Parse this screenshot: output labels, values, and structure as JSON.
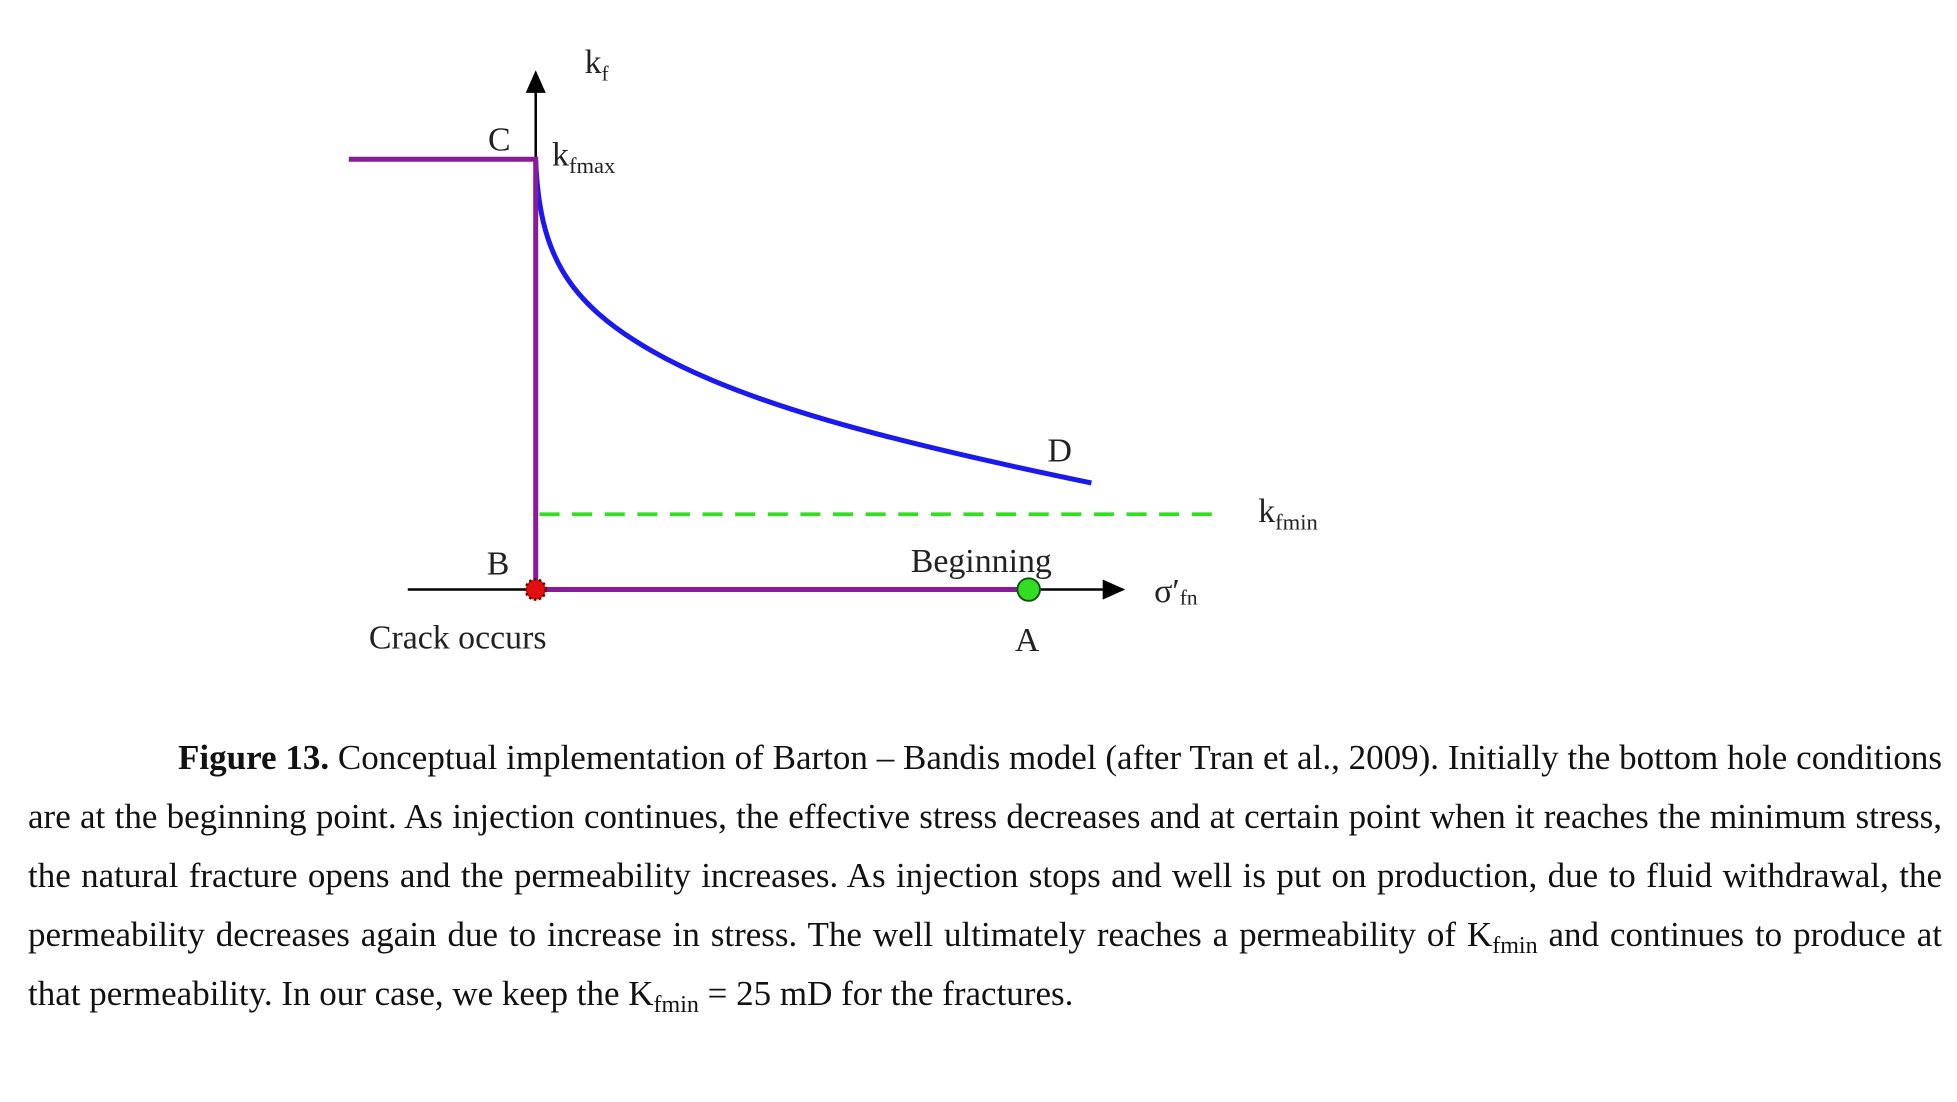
{
  "figure": {
    "labels": {
      "y_axis": {
        "base": "k",
        "sub": "f"
      },
      "c_point": "C",
      "k_max": {
        "base": "k",
        "sub": "fmax"
      },
      "d_point": "D",
      "k_min": {
        "base": "k",
        "sub": "fmin"
      },
      "b_point": "B",
      "beginning": "Beginning",
      "x_axis": {
        "base": "σ′",
        "sub": "fn"
      },
      "crack": "Crack occurs",
      "a_point": "A"
    },
    "caption": {
      "label": "Figure 13.",
      "text_1": " Conceptual implementation of Barton – Bandis model (after Tran et al., 2009). Initially the bottom hole conditions are at the beginning point. As injection continues, the effective stress decreases and at certain point when it reaches the minimum stress, the natural fracture opens and the permeability increases. As injection stops and well is put on production, due to fluid withdrawal, the permeability decreases again due to increase in stress. The well ultimately reaches a permeability of K",
      "sub_1": "fmin",
      "text_2": " and continues to produce at that permeability. In our case, we keep the K",
      "sub_2": "fmin",
      "text_3": " = 25 mD for the fractures."
    }
  }
}
